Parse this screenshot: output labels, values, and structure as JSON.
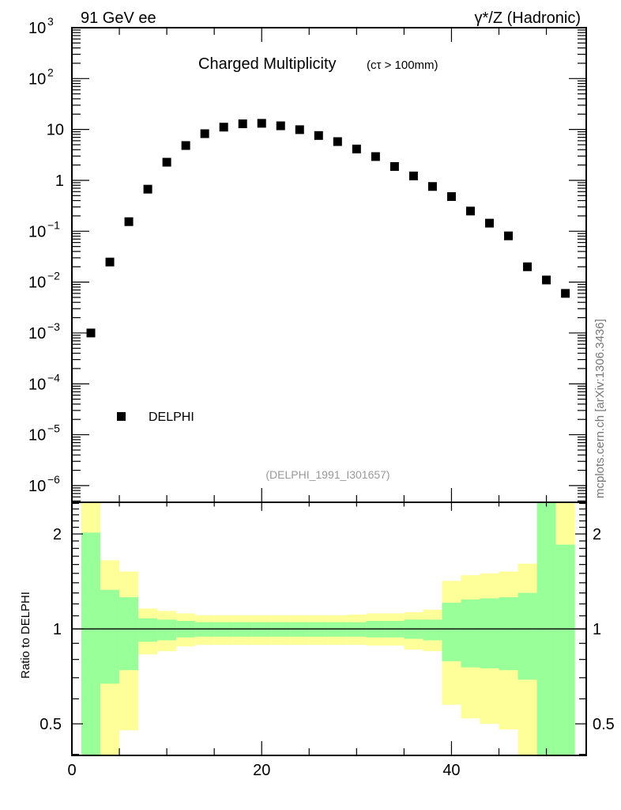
{
  "chart_data": [
    {
      "type": "scatter",
      "top_left_label": "91 GeV ee",
      "top_right_label": "γ*/Z (Hadronic)",
      "title": "Charged Multiplicity",
      "subtitle": "(cτ > 100mm)",
      "analysis_label": "(DELPHI_1991_I301657)",
      "side_label": "mcplots.cern.ch [arXiv:1306.3436]",
      "yscale": "log",
      "xlim": [
        0,
        54.2
      ],
      "ylim": [
        4.7e-07,
        1000
      ],
      "ytick_exponents": [
        3,
        2,
        1,
        0,
        -1,
        -2,
        -3,
        -4,
        -5,
        -6
      ],
      "ytick_labels": [
        "10",
        "1"
      ],
      "legend": {
        "entries": [
          "DELPHI"
        ],
        "placement": "bottom-left"
      },
      "series": [
        {
          "name": "DELPHI",
          "marker": "square",
          "color": "#000000",
          "x": [
            2,
            4,
            6,
            8,
            10,
            12,
            14,
            16,
            18,
            20,
            22,
            24,
            26,
            28,
            30,
            32,
            34,
            36,
            38,
            40,
            42,
            44,
            46,
            48,
            50,
            52
          ],
          "y": [
            0.001,
            0.0248,
            0.154,
            0.67,
            2.27,
            4.83,
            8.26,
            11.1,
            12.9,
            13.2,
            11.8,
            9.9,
            7.6,
            5.77,
            4.13,
            2.93,
            1.87,
            1.22,
            0.757,
            0.48,
            0.249,
            0.144,
            0.081,
            0.02,
            0.011,
            0.006
          ]
        }
      ]
    },
    {
      "type": "area",
      "ylabel": "Ratio to DELPHI",
      "yscale": "log",
      "xlim": [
        0,
        54.2
      ],
      "ylim": [
        0.397,
        2.52
      ],
      "yticks": [
        0.5,
        1,
        2
      ],
      "ytick_labels": [
        "0.5",
        "1",
        "2"
      ],
      "xticks": [
        0,
        20,
        40
      ],
      "xtick_labels": [
        "0",
        "20",
        "40"
      ],
      "bin_edges": [
        1,
        3,
        5,
        7,
        9,
        11,
        13,
        15,
        17,
        19,
        21,
        23,
        25,
        27,
        29,
        31,
        33,
        35,
        37,
        39,
        41,
        43,
        45,
        47,
        49,
        51,
        53
      ],
      "bands": [
        {
          "name": "total-uncertainty",
          "color": "#ffff99",
          "lo": [
            null,
            null,
            0.477,
            0.83,
            0.85,
            0.88,
            0.89,
            0.89,
            0.89,
            0.89,
            0.89,
            0.89,
            0.89,
            0.89,
            0.89,
            0.885,
            0.885,
            0.86,
            0.85,
            0.575,
            0.52,
            0.5,
            0.48,
            null,
            null,
            null
          ],
          "hi": [
            null,
            1.65,
            1.52,
            1.16,
            1.14,
            1.12,
            1.105,
            1.105,
            1.105,
            1.105,
            1.105,
            1.105,
            1.105,
            1.105,
            1.11,
            1.12,
            1.12,
            1.13,
            1.15,
            1.42,
            1.48,
            1.5,
            1.52,
            1.61,
            null,
            null
          ]
        },
        {
          "name": "stat-uncertainty",
          "color": "#99ff99",
          "lo": [
            null,
            0.67,
            0.74,
            0.91,
            0.92,
            0.94,
            0.945,
            0.945,
            0.945,
            0.945,
            0.945,
            0.945,
            0.945,
            0.945,
            0.945,
            0.94,
            0.94,
            0.93,
            0.92,
            0.79,
            0.755,
            0.75,
            0.74,
            0.69,
            null,
            null
          ],
          "hi": [
            2.02,
            1.33,
            1.26,
            1.08,
            1.07,
            1.06,
            1.05,
            1.05,
            1.05,
            1.05,
            1.05,
            1.05,
            1.05,
            1.05,
            1.05,
            1.06,
            1.06,
            1.07,
            1.07,
            1.21,
            1.24,
            1.25,
            1.26,
            1.3,
            null,
            1.85
          ]
        }
      ],
      "reference_line": 1
    }
  ]
}
